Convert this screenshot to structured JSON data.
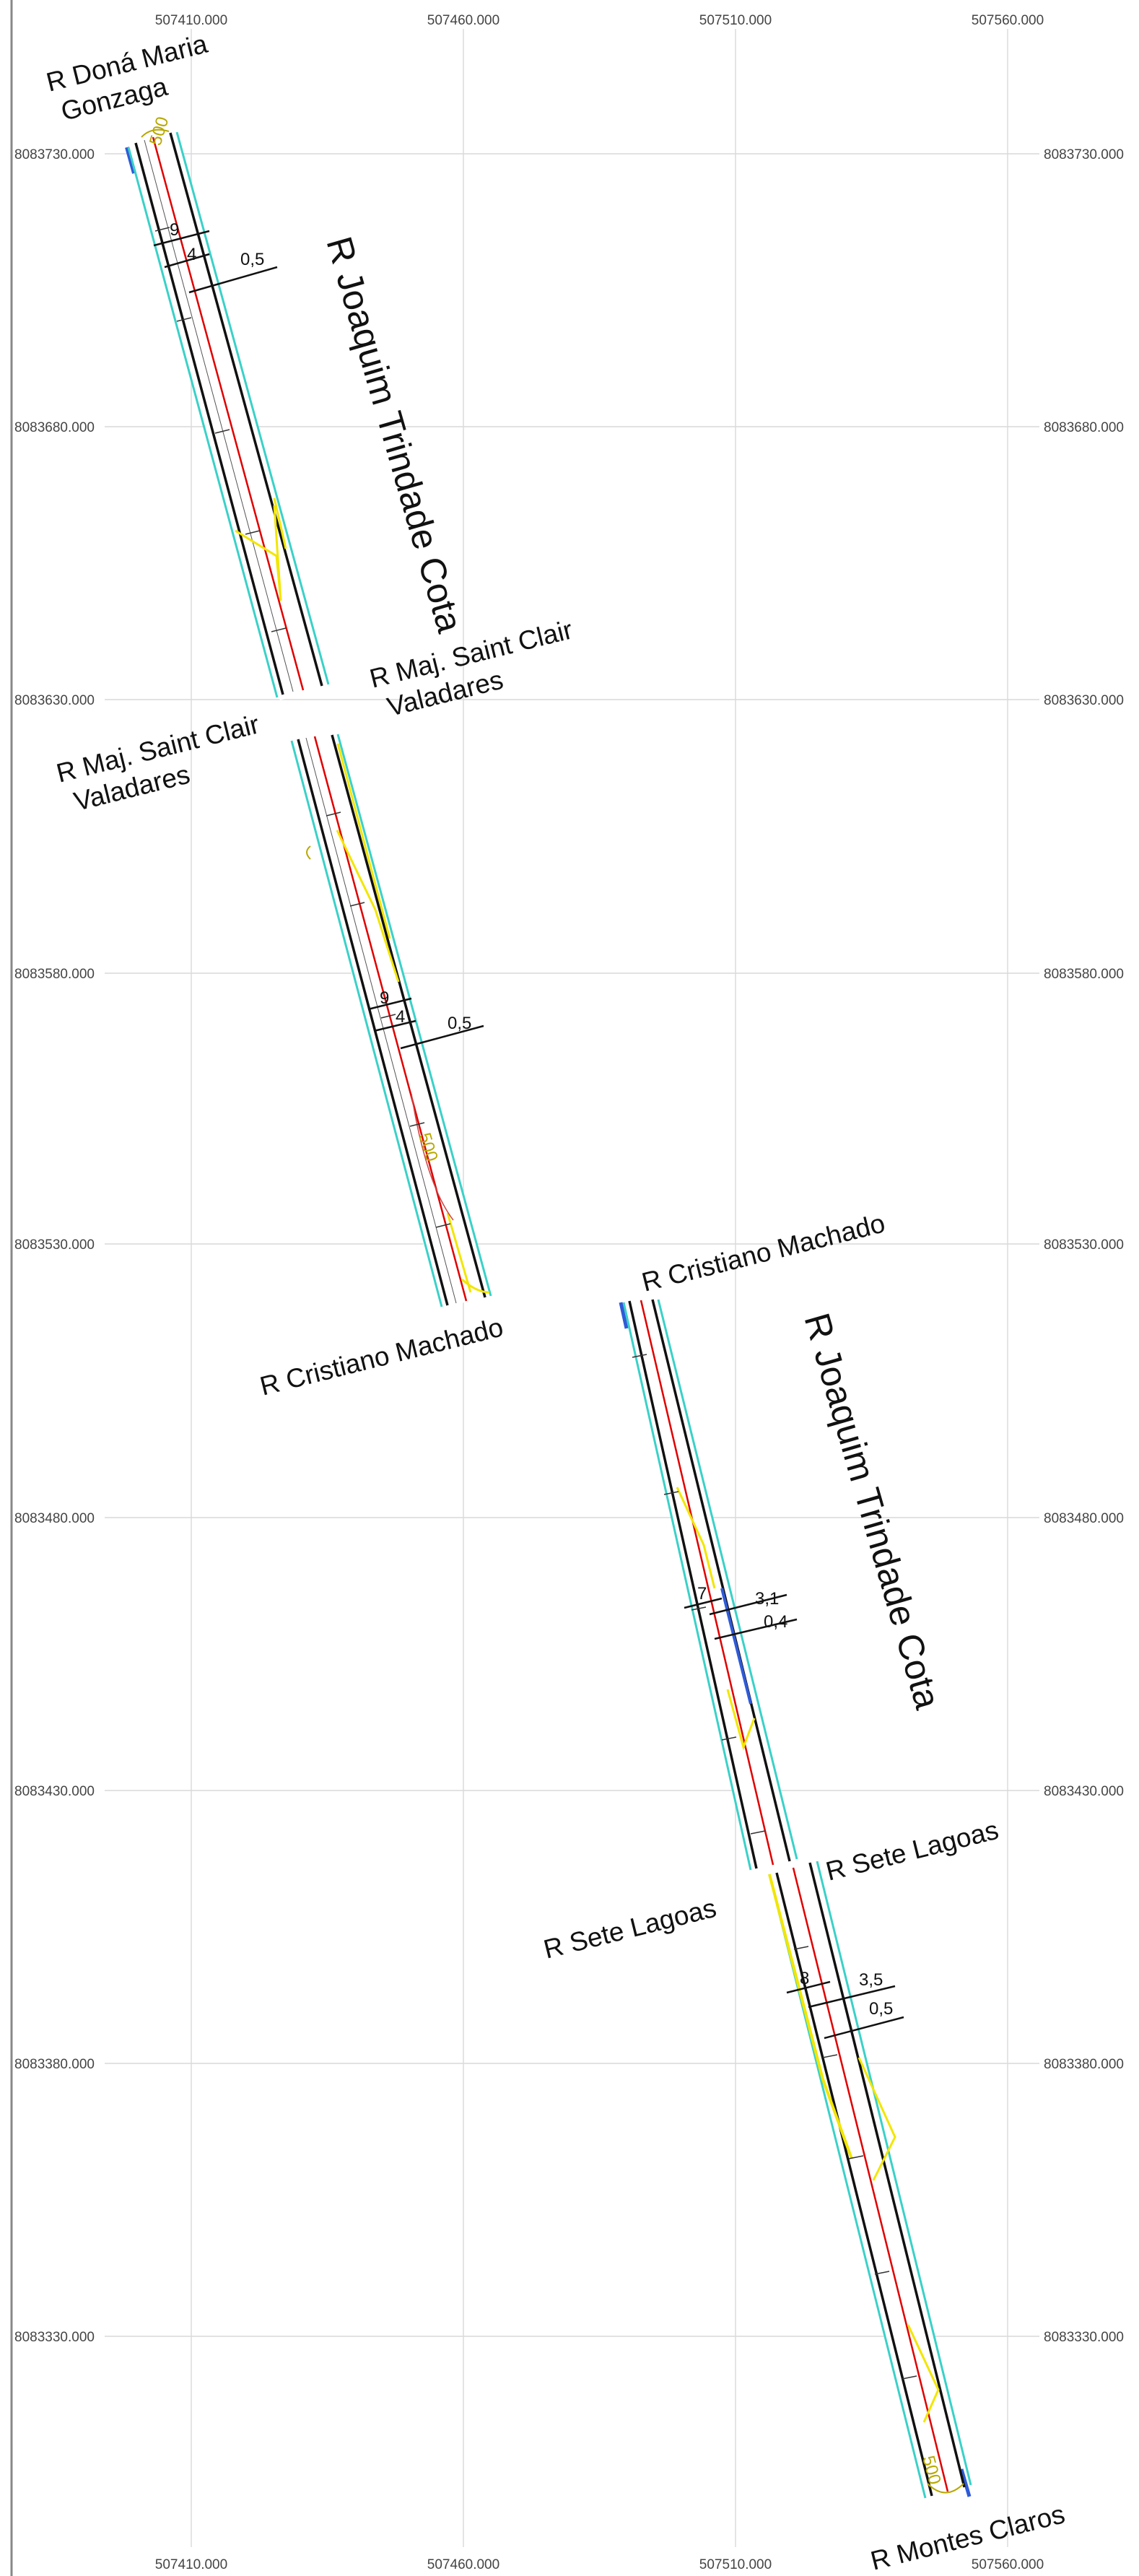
{
  "grid": {
    "x_labels": [
      "507410.000",
      "507460.000",
      "507510.000",
      "507560.000"
    ],
    "y_labels": [
      "8083730.000",
      "8083680.000",
      "8083630.000",
      "8083580.000",
      "8083530.000",
      "8083480.000",
      "8083430.000",
      "8083380.000",
      "8083330.000"
    ]
  },
  "colors": {
    "grid": "#d9d9d9",
    "frame": "#888888",
    "centerline": "#e00000",
    "curb": "#111111",
    "sidewalk_edge": "#3ad1c8",
    "crosswalk": "#f2e600",
    "blue_edge": "#2f5bd8",
    "olive_text": "#b7a800"
  },
  "street_labels": {
    "dona_maria": [
      "R Doná Maria",
      "Gonzaga"
    ],
    "joaquim_1": "R Joaquim Trindade Cota",
    "saint_clair_right": [
      "R Maj. Saint Clair",
      "Valadares"
    ],
    "saint_clair_left": [
      "R Maj. Saint Clair",
      "Valadares"
    ],
    "cristiano_bottom": "R Cristiano Machado",
    "cristiano_top": "R Cristiano Machado",
    "joaquim_2": "R Joaquim Trindade Cota",
    "sete_lagoas_right": "R Sete Lagoas",
    "sete_lagoas_left": "R Sete Lagoas",
    "montes_claros": "R Montes Claros"
  },
  "dimensions": {
    "seg1": [
      "9",
      "4",
      "0,5"
    ],
    "seg2": [
      "9",
      "4",
      "0,5"
    ],
    "seg3": [
      "7",
      "3,1",
      "0,4"
    ],
    "seg4": [
      "8",
      "3,5",
      "0,5"
    ]
  },
  "marks": {
    "speed_seg1": "500",
    "speed_seg2": "500",
    "speed_seg4": "500"
  }
}
